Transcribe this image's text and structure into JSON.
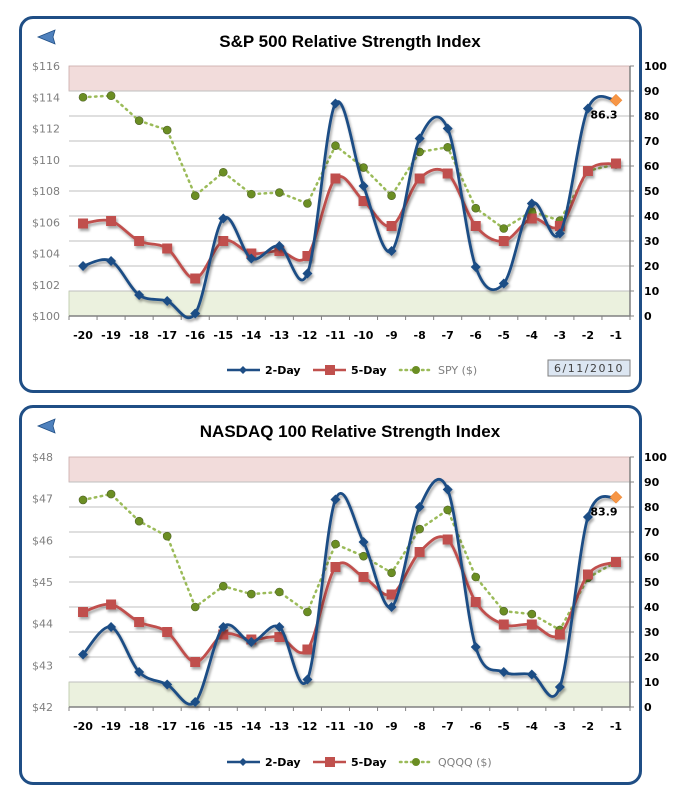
{
  "colors": {
    "two_day": "#1f4e85",
    "five_day": "#c0504d",
    "price": "#9bbb59",
    "price_marker": "#6b8e23",
    "overbought_band": "#f2dcdb",
    "oversold_band": "#ebf1de",
    "last_marker": "#f79646",
    "frame": "#1f4e85",
    "gridline": "#bfbfbf"
  },
  "chart_data": [
    {
      "type": "line",
      "title": "S&P 500 Relative Strength Index",
      "categories": [
        "-20",
        "-19",
        "-18",
        "-17",
        "-16",
        "-15",
        "-14",
        "-13",
        "-12",
        "-11",
        "-10",
        "-9",
        "-8",
        "-7",
        "-6",
        "-5",
        "-4",
        "-3",
        "-2",
        "-1"
      ],
      "left_axis": {
        "ylim": [
          100,
          116
        ],
        "ticks": [
          100,
          102,
          104,
          106,
          108,
          110,
          112,
          114,
          116
        ],
        "tick_labels": [
          "$100",
          "$102",
          "$104",
          "$106",
          "$108",
          "$110",
          "$112",
          "$114",
          "$116"
        ]
      },
      "right_axis": {
        "ylim": [
          0,
          100
        ],
        "ticks": [
          0,
          10,
          20,
          30,
          40,
          50,
          60,
          70,
          80,
          90,
          100
        ],
        "tick_labels": [
          "0",
          "10",
          "20",
          "30",
          "40",
          "50",
          "60",
          "70",
          "80",
          "90",
          "100"
        ]
      },
      "bands": {
        "overbought": [
          90,
          100
        ],
        "oversold": [
          0,
          10
        ]
      },
      "grid": true,
      "legend_position": "bottom",
      "series": [
        {
          "name": "2-Day",
          "axis": "right",
          "smooth": true,
          "marker": "diamond",
          "values": [
            20,
            22,
            8.4,
            6,
            1,
            39,
            23,
            28,
            17,
            85,
            52,
            26,
            71,
            75,
            19.6,
            13,
            45,
            33,
            83,
            86.3
          ]
        },
        {
          "name": "5-Day",
          "axis": "right",
          "smooth": true,
          "marker": "square",
          "values": [
            37,
            38,
            30,
            27,
            15,
            30,
            25,
            26,
            24,
            55,
            46,
            36,
            55,
            57,
            36,
            30,
            39,
            36,
            58,
            61
          ]
        },
        {
          "name": "SPY ($)",
          "axis": "left",
          "smooth": false,
          "marker": "circle",
          "dotted": true,
          "values": [
            114.0,
            114.1,
            112.5,
            111.9,
            107.7,
            109.2,
            107.8,
            107.9,
            107.2,
            110.9,
            109.5,
            107.7,
            110.5,
            110.8,
            106.9,
            105.6,
            106.7,
            106.1,
            109.3,
            109.7
          ]
        }
      ],
      "annotation": {
        "label": "86.3",
        "category": "-1",
        "series": "2-Day"
      },
      "date_label": "6/11/2010"
    },
    {
      "type": "line",
      "title": "NASDAQ 100 Relative Strength Index",
      "categories": [
        "-20",
        "-19",
        "-18",
        "-17",
        "-16",
        "-15",
        "-14",
        "-13",
        "-12",
        "-11",
        "-10",
        "-9",
        "-8",
        "-7",
        "-6",
        "-5",
        "-4",
        "-3",
        "-2",
        "-1"
      ],
      "left_axis": {
        "ylim": [
          42,
          48
        ],
        "ticks": [
          42,
          43,
          44,
          45,
          46,
          47,
          48
        ],
        "tick_labels": [
          "$42",
          "$43",
          "$44",
          "$45",
          "$46",
          "$47",
          "$48"
        ]
      },
      "right_axis": {
        "ylim": [
          0,
          100
        ],
        "ticks": [
          0,
          10,
          20,
          30,
          40,
          50,
          60,
          70,
          80,
          90,
          100
        ],
        "tick_labels": [
          "0",
          "10",
          "20",
          "30",
          "40",
          "50",
          "60",
          "70",
          "80",
          "90",
          "100"
        ]
      },
      "bands": {
        "overbought": [
          90,
          100
        ],
        "oversold": [
          0,
          10
        ]
      },
      "grid": true,
      "legend_position": "bottom",
      "series": [
        {
          "name": "2-Day",
          "axis": "right",
          "smooth": true,
          "marker": "diamond",
          "values": [
            21,
            32,
            14,
            9,
            2,
            32,
            26,
            32,
            11,
            83,
            66,
            40,
            80,
            87,
            24,
            14,
            13,
            8,
            76,
            83.9
          ]
        },
        {
          "name": "5-Day",
          "axis": "right",
          "smooth": true,
          "marker": "square",
          "values": [
            38,
            41,
            34,
            30,
            18,
            29,
            27,
            28,
            23,
            56,
            52,
            45,
            62,
            67,
            42,
            33,
            33,
            29,
            53,
            58
          ]
        },
        {
          "name": "QQQQ ($)",
          "axis": "left",
          "smooth": false,
          "marker": "circle",
          "dotted": true,
          "values": [
            46.97,
            47.11,
            46.46,
            46.1,
            44.4,
            44.9,
            44.71,
            44.76,
            44.28,
            45.91,
            45.62,
            45.22,
            46.27,
            46.73,
            45.12,
            44.3,
            44.23,
            43.85,
            45.1,
            45.48
          ]
        }
      ],
      "annotation": {
        "label": "83.9",
        "category": "-1",
        "series": "2-Day"
      },
      "date_label": ""
    }
  ],
  "icons": {
    "back": "back-arrow-icon"
  }
}
